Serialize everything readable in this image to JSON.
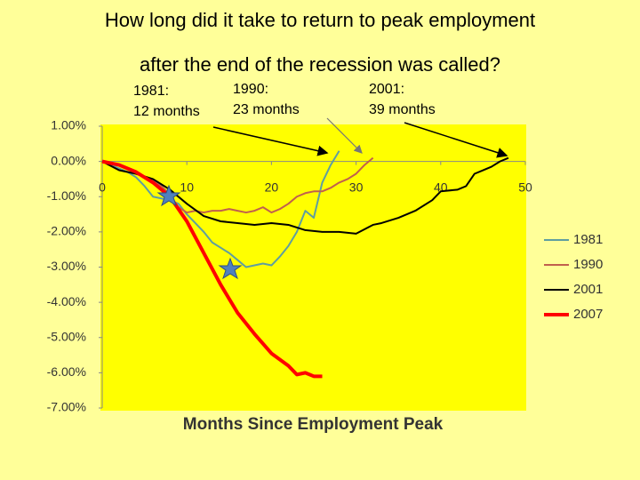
{
  "chart_data": {
    "type": "line",
    "title": [
      "How long did it take to return to peak employment",
      "after the end of the recession was called?"
    ],
    "annotations": [
      [
        "1981:",
        "12 months"
      ],
      [
        "1990:",
        "23 months"
      ],
      [
        "2001:",
        "39 months"
      ]
    ],
    "x_label": "Months Since Employment Peak",
    "xlim": [
      0,
      50
    ],
    "xticks": [
      0,
      10,
      20,
      30,
      40,
      50
    ],
    "ylim": [
      -7,
      1
    ],
    "yticks": [
      {
        "value": 1,
        "label": "1.00%"
      },
      {
        "value": 0,
        "label": "0.00%"
      },
      {
        "value": -1,
        "label": "-1.00%"
      },
      {
        "value": -2,
        "label": "-2.00%"
      },
      {
        "value": -3,
        "label": "-3.00%"
      },
      {
        "value": -4,
        "label": "-4.00%"
      },
      {
        "value": -5,
        "label": "-5.00%"
      },
      {
        "value": -6,
        "label": "-6.00%"
      },
      {
        "value": -7,
        "label": "-7.00%"
      }
    ],
    "legend": "right",
    "series": [
      {
        "name": "1981",
        "color": "#5f9ea0",
        "width": 2,
        "x": [
          0,
          1,
          2,
          3,
          4,
          5,
          6,
          7,
          8,
          9,
          10,
          11,
          12,
          13,
          14,
          15,
          16,
          17,
          18,
          19,
          20,
          21,
          22,
          23,
          24,
          25,
          26,
          27,
          28
        ],
        "values": [
          0,
          -0.1,
          -0.2,
          -0.3,
          -0.45,
          -0.7,
          -1.0,
          -1.05,
          -1.1,
          -1.2,
          -1.5,
          -1.75,
          -2.0,
          -2.3,
          -2.45,
          -2.6,
          -2.8,
          -3.0,
          -2.95,
          -2.9,
          -2.95,
          -2.7,
          -2.4,
          -2.0,
          -1.4,
          -1.6,
          -0.6,
          -0.1,
          0.3
        ]
      },
      {
        "name": "1990",
        "color": "#c0604d",
        "width": 2,
        "x": [
          0,
          1,
          2,
          3,
          4,
          5,
          6,
          7,
          8,
          9,
          10,
          11,
          12,
          13,
          14,
          15,
          16,
          17,
          18,
          19,
          20,
          21,
          22,
          23,
          24,
          25,
          26,
          27,
          28,
          29,
          30,
          31,
          32
        ],
        "values": [
          0,
          -0.05,
          -0.1,
          -0.2,
          -0.35,
          -0.45,
          -0.55,
          -0.7,
          -0.95,
          -1.3,
          -1.45,
          -1.4,
          -1.45,
          -1.4,
          -1.4,
          -1.35,
          -1.4,
          -1.45,
          -1.4,
          -1.3,
          -1.45,
          -1.35,
          -1.2,
          -1.0,
          -0.9,
          -0.85,
          -0.85,
          -0.75,
          -0.6,
          -0.5,
          -0.35,
          -0.1,
          0.1
        ]
      },
      {
        "name": "2001",
        "color": "#000000",
        "width": 2,
        "x": [
          0,
          2,
          4,
          6,
          8,
          10,
          12,
          14,
          16,
          18,
          20,
          22,
          24,
          26,
          28,
          30,
          32,
          33,
          35,
          37,
          39,
          40,
          42,
          43,
          44,
          45,
          46,
          47,
          48
        ],
        "values": [
          0,
          -0.25,
          -0.35,
          -0.5,
          -0.8,
          -1.2,
          -1.55,
          -1.7,
          -1.75,
          -1.8,
          -1.75,
          -1.8,
          -1.95,
          -2.0,
          -2.0,
          -2.05,
          -1.8,
          -1.75,
          -1.6,
          -1.4,
          -1.1,
          -0.85,
          -0.8,
          -0.7,
          -0.35,
          -0.25,
          -0.15,
          0,
          0.1
        ]
      },
      {
        "name": "2007",
        "color": "#ff0000",
        "width": 4,
        "x": [
          0,
          2,
          4,
          6,
          8,
          10,
          12,
          14,
          16,
          18,
          20,
          22,
          23,
          24,
          25,
          26
        ],
        "values": [
          0,
          -0.1,
          -0.3,
          -0.6,
          -1.0,
          -1.7,
          -2.6,
          -3.5,
          -4.3,
          -4.9,
          -5.45,
          -5.8,
          -6.05,
          -6.0,
          -6.1,
          -6.1
        ]
      }
    ]
  }
}
